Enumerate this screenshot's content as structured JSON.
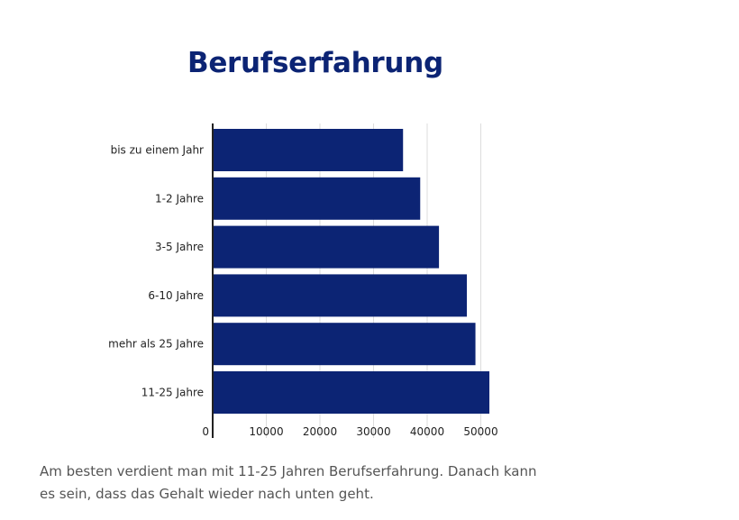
{
  "title": "Berufserfahrung",
  "caption": "Am besten verdient man mit 11-25 Jahren Berufserfahrung. Danach kann es sein, dass das Gehalt wieder nach unten geht.",
  "colors": {
    "bar": "#0c2474",
    "title": "#0c2474",
    "grid": "#dddddd",
    "axis": "#222222",
    "label": "#222222"
  },
  "chart_data": {
    "type": "bar",
    "orientation": "horizontal",
    "categories": [
      "bis zu einem Jahr",
      "1-2 Jahre",
      "3-5 Jahre",
      "6-10 Jahre",
      "mehr als 25 Jahre",
      "11-25 Jahre"
    ],
    "values": [
      35500,
      38700,
      42200,
      47400,
      49000,
      51600
    ],
    "xlim": [
      0,
      55000
    ],
    "xticks": [
      0,
      10000,
      20000,
      30000,
      40000,
      50000
    ],
    "xtick_labels": [
      "0",
      "10000",
      "20000",
      "30000",
      "40000",
      "50000"
    ],
    "grid": true,
    "legend": "none"
  }
}
